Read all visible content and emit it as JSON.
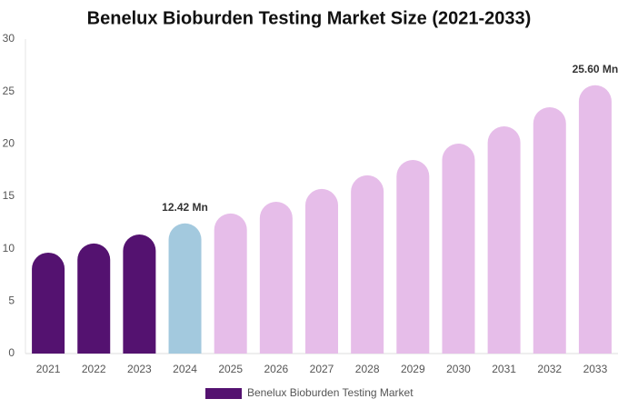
{
  "chart_data": {
    "type": "bar",
    "title": "Benelux Bioburden Testing Market Size (2021-2033)",
    "categories": [
      "2021",
      "2022",
      "2023",
      "2024",
      "2025",
      "2026",
      "2027",
      "2028",
      "2029",
      "2030",
      "2031",
      "2032",
      "2033"
    ],
    "series": [
      {
        "name": "Benelux Bioburden Testing Market",
        "color": "#541270",
        "values": [
          9.63,
          10.5,
          11.36,
          12.42,
          13.36,
          14.48,
          15.7,
          17.0,
          18.47,
          20.03,
          21.68,
          23.5,
          25.6
        ],
        "colors": [
          "#541270",
          "#541270",
          "#541270",
          "#a3c9de",
          "#e6bde9",
          "#e6bde9",
          "#e6bde9",
          "#e6bde9",
          "#e6bde9",
          "#e6bde9",
          "#e6bde9",
          "#e6bde9",
          "#e6bde9"
        ],
        "value_labels": [
          null,
          null,
          null,
          "12.42 Mn",
          null,
          null,
          null,
          null,
          null,
          null,
          null,
          null,
          "25.60 Mn"
        ]
      }
    ],
    "ylim": [
      0,
      30
    ],
    "yticks": [
      0,
      5,
      10,
      15,
      20,
      25,
      30
    ],
    "grid": false,
    "legend": "bottom"
  }
}
